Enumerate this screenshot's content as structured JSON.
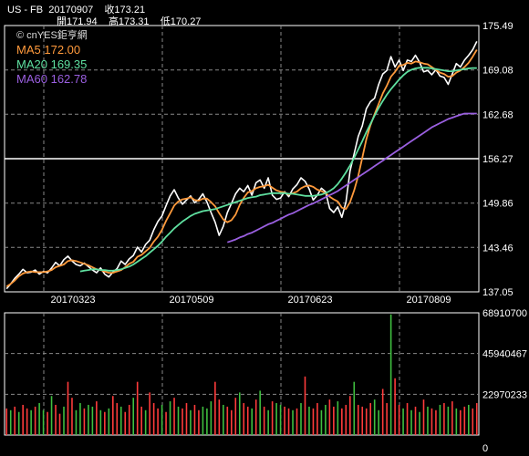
{
  "header": {
    "symbol": "US - FB",
    "date": "20170907",
    "close_label": "收173.21",
    "open_label": "開171.94",
    "high_label": "高173.31",
    "low_label": "低170.27"
  },
  "legend": {
    "source": "© cnYES鉅亨網",
    "items": [
      {
        "label": "MA5",
        "value": "172.00",
        "color": "#ff9a3c"
      },
      {
        "label": "MA20",
        "value": "169.35",
        "color": "#5fe0a0"
      },
      {
        "label": "MA60",
        "value": "162.78",
        "color": "#9a5fe0"
      }
    ]
  },
  "colors": {
    "background": "#000000",
    "price": "#ffffff",
    "up_volume": "#ff3b3b",
    "down_volume": "#3fbf3f",
    "grid": "#888888"
  },
  "chart_data": [
    {
      "type": "line",
      "title": "",
      "yticks": [
        "175.49",
        "169.08",
        "162.68",
        "156.27",
        "149.86",
        "143.46",
        "137.05"
      ],
      "ylim": [
        137.05,
        175.49
      ],
      "xticks": [
        "20170323",
        "20170509",
        "20170623",
        "20170809"
      ],
      "series": [
        {
          "name": "Close",
          "values": [
            137.5,
            138.2,
            139.0,
            139.6,
            140.3,
            139.8,
            139.9,
            140.2,
            139.6,
            140.0,
            139.8,
            140.5,
            141.3,
            140.8,
            141.7,
            142.2,
            141.5,
            141.0,
            140.8,
            141.2,
            140.7,
            140.2,
            139.8,
            140.5,
            139.6,
            139.2,
            139.9,
            140.4,
            141.5,
            141.0,
            141.8,
            142.3,
            143.5,
            142.8,
            143.9,
            144.5,
            146.0,
            147.2,
            148.0,
            149.5,
            150.9,
            151.8,
            150.6,
            149.7,
            150.3,
            150.9,
            149.9,
            150.4,
            151.2,
            150.0,
            148.5,
            147.1,
            145.2,
            146.5,
            148.5,
            149.8,
            151.2,
            152.0,
            151.5,
            152.4,
            151.0,
            152.8,
            153.2,
            152.0,
            153.5,
            151.0,
            150.4,
            150.6,
            151.5,
            150.8,
            151.9,
            152.5,
            153.5,
            153.0,
            151.9,
            150.3,
            151.0,
            152.0,
            151.5,
            149.1,
            148.5,
            149.3,
            147.8,
            150.0,
            154.5,
            157.0,
            159.5,
            161.0,
            163.5,
            164.5,
            165.0,
            167.0,
            168.5,
            169.0,
            171.0,
            169.5,
            170.5,
            169.0,
            170.5,
            170.3,
            171.2,
            170.2,
            168.8,
            169.0,
            168.4,
            169.1,
            168.2,
            168.0,
            167.0,
            168.5,
            170.0,
            169.5,
            170.5,
            171.2,
            172.0,
            173.2
          ]
        },
        {
          "name": "MA5",
          "values": [
            137.8,
            138.2,
            138.7,
            139.3,
            139.7,
            139.9,
            140.0,
            139.9,
            139.9,
            139.9,
            140.0,
            140.2,
            140.6,
            140.8,
            141.0,
            141.5,
            141.6,
            141.5,
            141.3,
            141.1,
            140.9,
            140.6,
            140.3,
            140.2,
            140.0,
            139.8,
            139.8,
            140.0,
            140.2,
            140.6,
            141.1,
            141.4,
            142.1,
            142.4,
            142.9,
            143.4,
            144.3,
            145.0,
            146.0,
            147.3,
            148.4,
            149.5,
            150.1,
            150.4,
            150.5,
            150.7,
            150.3,
            150.2,
            150.5,
            150.5,
            150.0,
            149.4,
            148.4,
            147.5,
            147.1,
            147.4,
            148.2,
            149.6,
            150.6,
            151.4,
            151.6,
            152.0,
            152.2,
            152.3,
            152.5,
            152.1,
            151.7,
            151.5,
            151.4,
            151.1,
            151.3,
            151.5,
            152.0,
            152.3,
            152.4,
            152.2,
            151.8,
            151.6,
            151.3,
            150.8,
            150.4,
            150.1,
            149.2,
            149.0,
            150.0,
            151.7,
            153.8,
            156.4,
            159.1,
            161.1,
            162.7,
            164.2,
            165.7,
            166.8,
            168.1,
            168.8,
            169.7,
            169.8,
            170.1,
            170.0,
            170.3,
            170.2,
            170.0,
            169.9,
            169.5,
            169.1,
            168.7,
            168.5,
            168.1,
            168.2,
            168.7,
            169.0,
            169.5,
            170.1,
            171.0,
            172.0
          ]
        },
        {
          "name": "MA20",
          "values": [
            null,
            null,
            null,
            null,
            null,
            null,
            null,
            null,
            null,
            null,
            null,
            null,
            null,
            null,
            null,
            null,
            null,
            null,
            140.0,
            140.1,
            140.2,
            140.3,
            140.3,
            140.2,
            140.2,
            140.1,
            140.1,
            140.2,
            140.3,
            140.5,
            140.7,
            141.0,
            141.4,
            141.8,
            142.2,
            142.7,
            143.2,
            143.7,
            144.3,
            145.0,
            145.6,
            146.2,
            146.7,
            147.2,
            147.6,
            148.0,
            148.3,
            148.5,
            148.7,
            148.8,
            148.9,
            149.0,
            149.2,
            149.4,
            149.6,
            149.8,
            150.0,
            150.2,
            150.4,
            150.6,
            150.7,
            150.8,
            151.0,
            151.1,
            151.2,
            151.3,
            151.3,
            151.3,
            151.3,
            151.2,
            151.2,
            151.1,
            151.0,
            150.9,
            150.9,
            150.9,
            151.0,
            151.1,
            151.3,
            151.6,
            152.0,
            152.6,
            153.4,
            154.3,
            155.3,
            156.4,
            157.6,
            158.8,
            160.1,
            161.3,
            162.5,
            163.6,
            164.6,
            165.5,
            166.3,
            167.0,
            167.7,
            168.3,
            168.8,
            169.1,
            169.3,
            169.4,
            169.4,
            169.4,
            169.3,
            169.2,
            169.1,
            169.0,
            168.9,
            168.9,
            169.0,
            169.1,
            169.2,
            169.3,
            169.35,
            169.35
          ]
        },
        {
          "name": "MA60",
          "values": [
            null,
            null,
            null,
            null,
            null,
            null,
            null,
            null,
            null,
            null,
            null,
            null,
            null,
            null,
            null,
            null,
            null,
            null,
            null,
            null,
            null,
            null,
            null,
            null,
            null,
            null,
            null,
            null,
            null,
            null,
            null,
            null,
            null,
            null,
            null,
            null,
            null,
            null,
            null,
            null,
            null,
            null,
            null,
            null,
            null,
            null,
            null,
            null,
            null,
            null,
            null,
            null,
            null,
            null,
            144.2,
            144.4,
            144.6,
            144.9,
            145.1,
            145.4,
            145.6,
            145.9,
            146.2,
            146.5,
            146.8,
            147.0,
            147.3,
            147.6,
            147.9,
            148.2,
            148.4,
            148.7,
            149.0,
            149.3,
            149.6,
            149.8,
            150.1,
            150.4,
            150.7,
            151.0,
            151.3,
            151.6,
            152.0,
            152.4,
            152.8,
            153.2,
            153.6,
            154.0,
            154.4,
            154.8,
            155.2,
            155.6,
            156.0,
            156.4,
            156.8,
            157.2,
            157.6,
            158.0,
            158.4,
            158.8,
            159.2,
            159.6,
            160.0,
            160.4,
            160.8,
            161.1,
            161.4,
            161.7,
            162.0,
            162.2,
            162.4,
            162.6,
            162.78,
            162.78,
            162.78,
            162.78
          ]
        }
      ]
    },
    {
      "type": "bar",
      "title": "",
      "yticks": [
        "68910700",
        "45940467",
        "22970233",
        "0"
      ],
      "ylim": [
        0,
        68910700
      ],
      "series": [
        {
          "name": "Volume",
          "values": [
            15,
            14,
            16,
            13,
            17,
            15,
            14,
            16,
            18,
            14,
            13,
            22,
            17,
            12,
            16,
            30,
            21,
            14,
            18,
            15,
            17,
            16,
            19,
            14,
            13,
            15,
            22,
            18,
            16,
            13,
            17,
            21,
            30,
            16,
            14,
            24,
            18,
            15,
            17,
            13,
            19,
            21,
            16,
            15,
            18,
            14,
            17,
            14,
            16,
            15,
            19,
            30,
            20,
            17,
            16,
            14,
            21,
            24,
            18,
            16,
            15,
            20,
            25,
            16,
            14,
            19,
            18,
            17,
            16,
            15,
            14,
            15,
            18,
            33,
            16,
            15,
            18,
            14,
            17,
            20,
            16,
            19,
            15,
            17,
            22,
            30,
            17,
            16,
            15,
            18,
            20,
            14,
            26,
            18,
            68,
            32,
            17,
            15,
            18,
            14,
            16,
            13,
            20,
            16,
            15,
            14,
            17,
            18,
            16,
            19,
            15,
            14,
            16,
            17,
            15,
            18
          ]
        },
        {
          "name": "Direction",
          "values": [
            1,
            0,
            1,
            0,
            1,
            1,
            0,
            1,
            0,
            0,
            1,
            0,
            1,
            1,
            0,
            1,
            1,
            0,
            0,
            1,
            0,
            0,
            1,
            0,
            1,
            0,
            1,
            1,
            0,
            1,
            1,
            0,
            1,
            1,
            0,
            1,
            1,
            1,
            0,
            1,
            0,
            1,
            0,
            1,
            1,
            0,
            1,
            1,
            0,
            0,
            0,
            1,
            1,
            0,
            1,
            1,
            1,
            0,
            1,
            1,
            0,
            1,
            0,
            1,
            0,
            1,
            0,
            0,
            1,
            1,
            0,
            1,
            0,
            1,
            0,
            1,
            1,
            0,
            0,
            1,
            1,
            0,
            1,
            1,
            1,
            0,
            1,
            1,
            1,
            1,
            0,
            0,
            1,
            1,
            0,
            1,
            1,
            0,
            1,
            0,
            1,
            0,
            1,
            0,
            1,
            1,
            0,
            1,
            0,
            1,
            0,
            1,
            1,
            0,
            1,
            1
          ]
        }
      ]
    }
  ]
}
